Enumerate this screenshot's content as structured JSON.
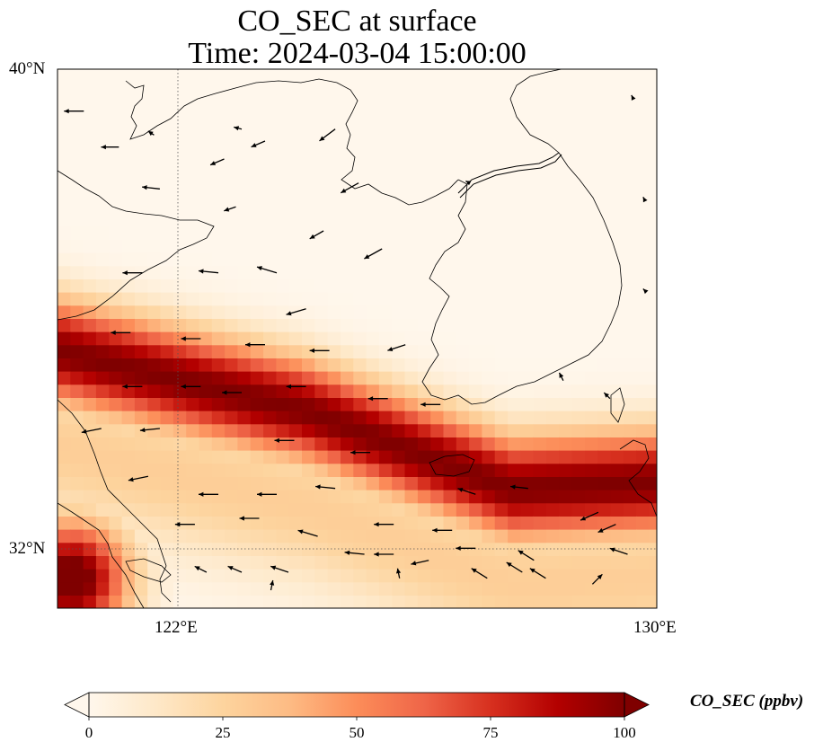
{
  "title": {
    "line1": "CO_SEC at surface",
    "line2": "Time: 2024-03-04 15:00:00"
  },
  "map": {
    "lon_range": [
      119.75,
      130.0
    ],
    "lat_range": [
      31.0,
      40.0
    ],
    "gridlines": {
      "lon": [
        122,
        130
      ],
      "lat": [
        32,
        40
      ],
      "style": "dotted"
    },
    "lon_labels": [
      "122°E",
      "130°E"
    ],
    "lat_labels": [
      "40°N",
      "32°N"
    ]
  },
  "field": {
    "variable": "CO_SEC",
    "units": "ppbv",
    "colormap": "OrRd",
    "vmin": 0,
    "vmax": 100,
    "plume": {
      "description_type": "diagonal band",
      "center_line": [
        [
          119.75,
          35.3
        ],
        [
          124.0,
          34.3
        ],
        [
          127.5,
          33.0
        ],
        [
          130.0,
          33.1
        ]
      ],
      "halfwidth_deg": 0.9,
      "peak_ppbv": 100,
      "secondary_peak": [
        120.0,
        31.5
      ]
    }
  },
  "colorbar": {
    "label": "CO_SEC (ppbv)",
    "ticks": [
      "0",
      "25",
      "50",
      "75",
      "100"
    ],
    "extend": "both"
  },
  "colors": {
    "low": "#fff7ec",
    "mid": "#fc8d59",
    "high": "#7f0000"
  },
  "wind_vectors": [
    {
      "lon": 120.2,
      "lat": 39.3,
      "u": -1.0,
      "v": 0.0
    },
    {
      "lon": 120.8,
      "lat": 38.7,
      "u": -0.9,
      "v": 0.0
    },
    {
      "lon": 121.4,
      "lat": 38.9,
      "u": -0.3,
      "v": 0.2
    },
    {
      "lon": 122.9,
      "lat": 39.0,
      "u": -0.4,
      "v": 0.1
    },
    {
      "lon": 123.3,
      "lat": 38.8,
      "u": -0.7,
      "v": -0.3
    },
    {
      "lon": 124.5,
      "lat": 39.0,
      "u": -0.8,
      "v": -0.6
    },
    {
      "lon": 124.9,
      "lat": 38.1,
      "u": -0.9,
      "v": -0.5
    },
    {
      "lon": 122.6,
      "lat": 38.5,
      "u": -0.7,
      "v": -0.3
    },
    {
      "lon": 121.5,
      "lat": 38.0,
      "u": -0.9,
      "v": 0.1
    },
    {
      "lon": 122.8,
      "lat": 37.7,
      "u": -0.6,
      "v": -0.2
    },
    {
      "lon": 121.2,
      "lat": 36.6,
      "u": -1.0,
      "v": 0.0
    },
    {
      "lon": 122.5,
      "lat": 36.6,
      "u": -1.0,
      "v": 0.1
    },
    {
      "lon": 123.5,
      "lat": 36.6,
      "u": -1.0,
      "v": 0.3
    },
    {
      "lon": 124.3,
      "lat": 37.3,
      "u": -0.7,
      "v": -0.4
    },
    {
      "lon": 125.3,
      "lat": 37.0,
      "u": -0.9,
      "v": -0.5
    },
    {
      "lon": 124.0,
      "lat": 36.0,
      "u": -1.0,
      "v": -0.3
    },
    {
      "lon": 121.0,
      "lat": 35.6,
      "u": -1.0,
      "v": 0.0
    },
    {
      "lon": 122.2,
      "lat": 35.5,
      "u": -1.0,
      "v": 0.0
    },
    {
      "lon": 123.3,
      "lat": 35.4,
      "u": -1.0,
      "v": 0.0
    },
    {
      "lon": 124.4,
      "lat": 35.3,
      "u": -1.0,
      "v": 0.0
    },
    {
      "lon": 125.7,
      "lat": 35.4,
      "u": -0.9,
      "v": -0.3
    },
    {
      "lon": 121.2,
      "lat": 34.7,
      "u": -1.0,
      "v": 0.0
    },
    {
      "lon": 122.2,
      "lat": 34.7,
      "u": -1.0,
      "v": 0.0
    },
    {
      "lon": 122.9,
      "lat": 34.6,
      "u": -1.0,
      "v": 0.0
    },
    {
      "lon": 124.0,
      "lat": 34.7,
      "u": -1.0,
      "v": 0.0
    },
    {
      "lon": 125.4,
      "lat": 34.5,
      "u": -1.0,
      "v": 0.0
    },
    {
      "lon": 126.3,
      "lat": 34.4,
      "u": -1.0,
      "v": 0.0
    },
    {
      "lon": 128.4,
      "lat": 34.8,
      "u": -0.2,
      "v": 0.4
    },
    {
      "lon": 129.2,
      "lat": 34.5,
      "u": -0.3,
      "v": 0.3
    },
    {
      "lon": 120.5,
      "lat": 34.0,
      "u": -1.0,
      "v": -0.2
    },
    {
      "lon": 121.5,
      "lat": 34.0,
      "u": -1.0,
      "v": -0.1
    },
    {
      "lon": 123.8,
      "lat": 33.8,
      "u": -1.0,
      "v": 0.0
    },
    {
      "lon": 125.1,
      "lat": 33.6,
      "u": -1.0,
      "v": 0.0
    },
    {
      "lon": 121.3,
      "lat": 33.2,
      "u": -1.0,
      "v": -0.2
    },
    {
      "lon": 122.5,
      "lat": 32.9,
      "u": -1.0,
      "v": 0.0
    },
    {
      "lon": 123.5,
      "lat": 32.9,
      "u": -1.0,
      "v": 0.0
    },
    {
      "lon": 124.5,
      "lat": 33.0,
      "u": -1.0,
      "v": 0.1
    },
    {
      "lon": 126.9,
      "lat": 32.9,
      "u": -0.9,
      "v": 0.3
    },
    {
      "lon": 127.8,
      "lat": 33.0,
      "u": -0.9,
      "v": 0.1
    },
    {
      "lon": 122.1,
      "lat": 32.4,
      "u": -1.0,
      "v": 0.0
    },
    {
      "lon": 123.2,
      "lat": 32.5,
      "u": -1.0,
      "v": 0.0
    },
    {
      "lon": 124.2,
      "lat": 32.2,
      "u": -1.0,
      "v": 0.3
    },
    {
      "lon": 125.5,
      "lat": 32.4,
      "u": -1.0,
      "v": 0.0
    },
    {
      "lon": 126.5,
      "lat": 32.3,
      "u": -1.0,
      "v": 0.0
    },
    {
      "lon": 129.3,
      "lat": 32.4,
      "u": -0.9,
      "v": -0.4
    },
    {
      "lon": 129.0,
      "lat": 32.6,
      "u": -0.9,
      "v": -0.4
    },
    {
      "lon": 122.3,
      "lat": 31.6,
      "u": -0.6,
      "v": 0.3
    },
    {
      "lon": 122.9,
      "lat": 31.6,
      "u": -0.7,
      "v": 0.3
    },
    {
      "lon": 123.7,
      "lat": 31.6,
      "u": -0.9,
      "v": 0.3
    },
    {
      "lon": 125.0,
      "lat": 31.9,
      "u": -1.0,
      "v": 0.1
    },
    {
      "lon": 125.5,
      "lat": 31.9,
      "u": -1.0,
      "v": 0.0
    },
    {
      "lon": 126.9,
      "lat": 32.0,
      "u": -1.0,
      "v": 0.0
    },
    {
      "lon": 126.1,
      "lat": 31.8,
      "u": -0.9,
      "v": -0.2
    },
    {
      "lon": 127.1,
      "lat": 31.5,
      "u": -0.8,
      "v": 0.5
    },
    {
      "lon": 127.7,
      "lat": 31.6,
      "u": -0.8,
      "v": 0.5
    },
    {
      "lon": 127.9,
      "lat": 31.8,
      "u": -0.8,
      "v": 0.5
    },
    {
      "lon": 128.1,
      "lat": 31.5,
      "u": -0.8,
      "v": 0.5
    },
    {
      "lon": 129.5,
      "lat": 31.9,
      "u": -0.9,
      "v": 0.3
    },
    {
      "lon": 125.6,
      "lat": 31.5,
      "u": -0.1,
      "v": 0.5
    },
    {
      "lon": 123.4,
      "lat": 31.3,
      "u": 0.1,
      "v": 0.5
    },
    {
      "lon": 128.9,
      "lat": 31.4,
      "u": 0.5,
      "v": 0.5
    },
    {
      "lon": 129.6,
      "lat": 39.5,
      "u": -0.1,
      "v": 0.2
    },
    {
      "lon": 126.8,
      "lat": 38.1,
      "u": -0.2,
      "v": 0.1
    },
    {
      "lon": 129.8,
      "lat": 37.8,
      "u": -0.1,
      "v": 0.2
    },
    {
      "lon": 129.8,
      "lat": 36.3,
      "u": -0.1,
      "v": 0.1
    }
  ]
}
